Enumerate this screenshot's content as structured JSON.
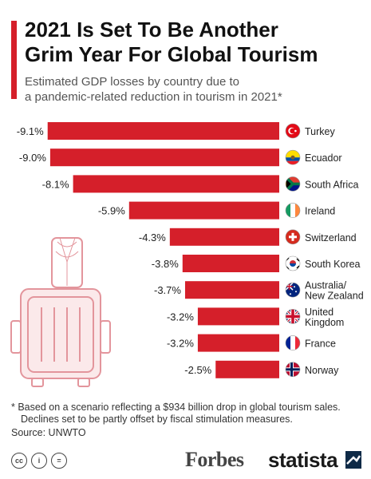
{
  "header": {
    "title_line1": "2021 Is Set To Be Another",
    "title_line2": "Grim Year For Global Tourism",
    "subtitle_line1": "Estimated GDP losses by country due to",
    "subtitle_line2": "a pandemic-related reduction in tourism in 2021*"
  },
  "chart_data": {
    "type": "bar",
    "orientation": "horizontal",
    "categories": [
      "Turkey",
      "Ecuador",
      "South Africa",
      "Ireland",
      "Switzerland",
      "South Korea",
      "Australia/\nNew Zealand",
      "United\nKingdom",
      "France",
      "Norway"
    ],
    "values": [
      -9.1,
      -9.0,
      -8.1,
      -5.9,
      -4.3,
      -3.8,
      -3.7,
      -3.2,
      -3.2,
      -2.5
    ],
    "value_labels": [
      "-9.1%",
      "-9.0%",
      "-8.1%",
      "-5.9%",
      "-4.3%",
      "-3.8%",
      "-3.7%",
      "-3.2%",
      "-3.2%",
      "-2.5%"
    ],
    "bar_color": "#d51f2a",
    "unit": "%",
    "grid": false,
    "icons": [
      "turkey-flag-icon",
      "ecuador-flag-icon",
      "south-africa-flag-icon",
      "ireland-flag-icon",
      "switzerland-flag-icon",
      "south-korea-flag-icon",
      "australia-flag-icon",
      "uk-flag-icon",
      "france-flag-icon",
      "norway-flag-icon"
    ]
  },
  "footnote": {
    "line1": "* Based on a scenario reflecting a $934 billion drop in global tourism sales.",
    "line2": "Declines set to be partly offset by fiscal stimulation measures.",
    "source": "Source: UNWTO"
  },
  "footer": {
    "cc_labels": [
      "cc",
      "i",
      "="
    ],
    "forbes": "Forbes",
    "statista": "statista"
  },
  "colors": {
    "accent": "#d51f2a",
    "illustration": "#e8a0a6"
  }
}
